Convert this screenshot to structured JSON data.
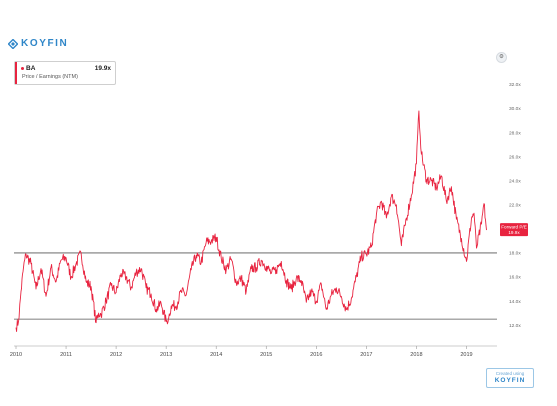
{
  "app": {
    "brand": "KOYFIN",
    "watermark_created": "Created using",
    "watermark_brand": "KOYFIN"
  },
  "legend": {
    "ticker": "BA",
    "value": "19.9x",
    "metric": "Price / Earnings (NTM)"
  },
  "colors": {
    "series": "#e8233f",
    "brand": "#2f86c8",
    "reference_line": "#555555"
  },
  "icons": {
    "brand_logo": "koyfin-diamond-icon",
    "settings": "settings-icon"
  },
  "chart_data": {
    "type": "line",
    "title": "",
    "xlabel": "",
    "ylabel": "",
    "x_ticks": [
      "2010",
      "2011",
      "2012",
      "2013",
      "2014",
      "2015",
      "2016",
      "2017",
      "2018",
      "2019"
    ],
    "y_ticks": [
      "12.0x",
      "14.0x",
      "16.0x",
      "18.0x",
      "20.0x",
      "22.0x",
      "24.0x",
      "26.0x",
      "28.0x",
      "30.0x",
      "32.0x"
    ],
    "xlim": [
      2010.0,
      2019.85
    ],
    "ylim": [
      10.6,
      33.2
    ],
    "grid": false,
    "series": [
      {
        "name": "BA",
        "x": [
          2010.0,
          2010.05,
          2010.1,
          2010.15,
          2010.2,
          2010.3,
          2010.4,
          2010.5,
          2010.6,
          2010.7,
          2010.8,
          2010.9,
          2011.0,
          2011.1,
          2011.2,
          2011.3,
          2011.4,
          2011.5,
          2011.6,
          2011.65,
          2011.7,
          2011.8,
          2011.9,
          2012.0,
          2012.1,
          2012.2,
          2012.3,
          2012.4,
          2012.5,
          2012.6,
          2012.7,
          2012.8,
          2012.9,
          2013.0,
          2013.05,
          2013.1,
          2013.2,
          2013.3,
          2013.4,
          2013.5,
          2013.6,
          2013.7,
          2013.8,
          2013.9,
          2014.0,
          2014.1,
          2014.2,
          2014.3,
          2014.4,
          2014.5,
          2014.6,
          2014.7,
          2014.8,
          2014.9,
          2015.0,
          2015.1,
          2015.2,
          2015.3,
          2015.4,
          2015.5,
          2015.6,
          2015.7,
          2015.8,
          2015.9,
          2016.0,
          2016.1,
          2016.2,
          2016.3,
          2016.4,
          2016.5,
          2016.6,
          2016.7,
          2016.8,
          2016.9,
          2017.0,
          2017.1,
          2017.2,
          2017.3,
          2017.4,
          2017.5,
          2017.6,
          2017.7,
          2017.8,
          2017.9,
          2018.0,
          2018.05,
          2018.1,
          2018.2,
          2018.3,
          2018.4,
          2018.5,
          2018.6,
          2018.7,
          2018.8,
          2018.9,
          2019.0,
          2019.1,
          2019.15,
          2019.2,
          2019.3,
          2019.35,
          2019.4
        ],
        "values": [
          11.8,
          12.3,
          14.8,
          16.8,
          17.9,
          17.1,
          15.0,
          16.7,
          14.4,
          16.8,
          15.6,
          17.4,
          17.6,
          16.0,
          17.1,
          18.0,
          15.6,
          15.2,
          12.2,
          13.0,
          12.9,
          14.0,
          15.3,
          14.7,
          16.3,
          16.0,
          15.1,
          16.4,
          16.7,
          15.1,
          14.6,
          13.3,
          13.8,
          12.3,
          12.6,
          13.6,
          13.6,
          14.8,
          14.5,
          16.6,
          17.8,
          17.2,
          18.9,
          19.0,
          19.3,
          17.6,
          16.6,
          17.5,
          15.5,
          15.9,
          14.8,
          16.7,
          16.8,
          17.4,
          16.9,
          16.3,
          16.6,
          17.3,
          15.7,
          15.0,
          15.9,
          15.7,
          13.9,
          14.8,
          14.0,
          15.4,
          13.3,
          14.5,
          15.1,
          14.4,
          13.3,
          14.2,
          16.0,
          17.7,
          17.9,
          18.5,
          21.2,
          22.3,
          20.9,
          22.7,
          22.0,
          18.6,
          20.9,
          22.8,
          25.4,
          29.8,
          26.2,
          24.1,
          24.0,
          23.4,
          24.4,
          22.3,
          23.5,
          20.8,
          19.2,
          17.3,
          20.9,
          21.3,
          18.4,
          20.4,
          22.1,
          19.9
        ]
      }
    ],
    "reference_lines": [
      18.0,
      12.5
    ],
    "annotation": {
      "text": "Forward P/E",
      "value": "19.9x"
    }
  }
}
